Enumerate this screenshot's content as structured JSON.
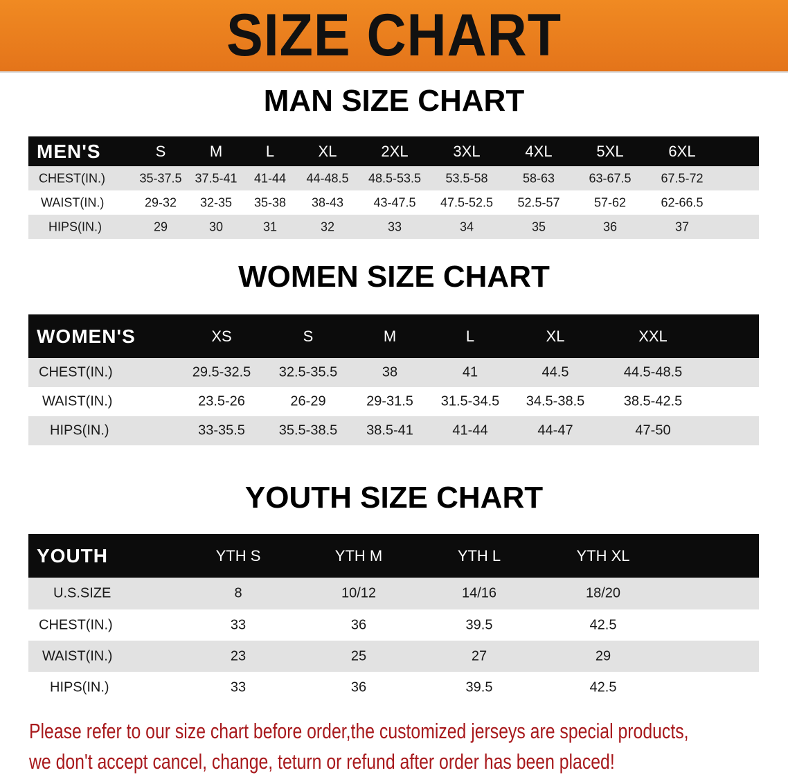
{
  "banner": {
    "title": "SIZE CHART",
    "color": "#e8781a"
  },
  "men": {
    "title": "MAN SIZE CHART",
    "header": [
      "MEN'S",
      "S",
      "M",
      "L",
      "XL",
      "2XL",
      "3XL",
      "4XL",
      "5XL",
      "6XL"
    ],
    "rows": [
      [
        "CHEST(IN.)",
        "35-37.5",
        "37.5-41",
        "41-44",
        "44-48.5",
        "48.5-53.5",
        "53.5-58",
        "58-63",
        "63-67.5",
        "67.5-72"
      ],
      [
        "WAIST(IN.)",
        "29-32",
        "32-35",
        "35-38",
        "38-43",
        "43-47.5",
        "47.5-52.5",
        "52.5-57",
        "57-62",
        "62-66.5"
      ],
      [
        "HIPS(IN.)",
        "29",
        "30",
        "31",
        "32",
        "33",
        "34",
        "35",
        "36",
        "37"
      ]
    ]
  },
  "women": {
    "title": "WOMEN SIZE CHART",
    "header": [
      "WOMEN'S",
      "XS",
      "S",
      "M",
      "L",
      "XL",
      "XXL"
    ],
    "rows": [
      [
        "CHEST(IN.)",
        "29.5-32.5",
        "32.5-35.5",
        "38",
        "41",
        "44.5",
        "44.5-48.5"
      ],
      [
        "WAIST(IN.)",
        "23.5-26",
        "26-29",
        "29-31.5",
        "31.5-34.5",
        "34.5-38.5",
        "38.5-42.5"
      ],
      [
        "HIPS(IN.)",
        "33-35.5",
        "35.5-38.5",
        "38.5-41",
        "41-44",
        "44-47",
        "47-50"
      ]
    ]
  },
  "youth": {
    "title": "YOUTH SIZE CHART",
    "header": [
      "YOUTH",
      "YTH S",
      "YTH M",
      "YTH L",
      "YTH XL"
    ],
    "rows": [
      [
        "U.S.SIZE",
        "8",
        "10/12",
        "14/16",
        "18/20"
      ],
      [
        "CHEST(IN.)",
        "33",
        "36",
        "39.5",
        "42.5"
      ],
      [
        "WAIST(IN.)",
        "23",
        "25",
        "27",
        "29"
      ],
      [
        "HIPS(IN.)",
        "33",
        "36",
        "39.5",
        "42.5"
      ]
    ]
  },
  "note": {
    "line1": "Please refer to our size chart before order,the customized jerseys are special products,",
    "line2": "we don't accept cancel, change, teturn or refund after order has been placed!",
    "color": "#a8191c"
  }
}
